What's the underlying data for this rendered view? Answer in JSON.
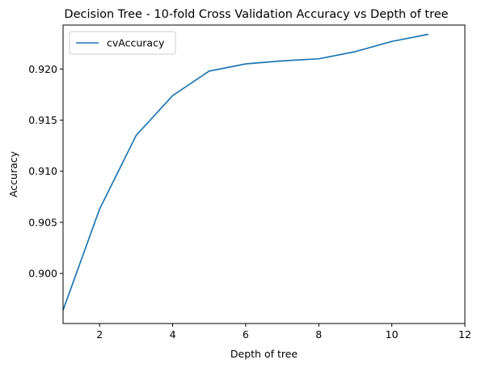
{
  "chart_data": {
    "type": "line",
    "title": "Decision Tree - 10-fold Cross Validation Accuracy vs Depth of tree",
    "xlabel": "Depth of tree",
    "ylabel": "Accuracy",
    "xlim": [
      1,
      12
    ],
    "ylim": [
      0.8951,
      0.9243
    ],
    "x_ticks": [
      2,
      4,
      6,
      8,
      10,
      12
    ],
    "y_ticks": [
      0.9,
      0.905,
      0.91,
      0.915,
      0.92
    ],
    "x_tick_labels": [
      "2",
      "4",
      "6",
      "8",
      "10",
      "12"
    ],
    "y_tick_labels": [
      "0.900",
      "0.905",
      "0.910",
      "0.915",
      "0.920"
    ],
    "grid": false,
    "legend_position": "top-left",
    "series": [
      {
        "name": "cvAccuracy",
        "color": "#1f77b4",
        "x": [
          1,
          2,
          3,
          4,
          5,
          6,
          7,
          8,
          9,
          10,
          11
        ],
        "values": [
          0.8964,
          0.9063,
          0.9135,
          0.9174,
          0.9198,
          0.9205,
          0.9208,
          0.921,
          0.9217,
          0.9227,
          0.9234
        ]
      }
    ]
  }
}
